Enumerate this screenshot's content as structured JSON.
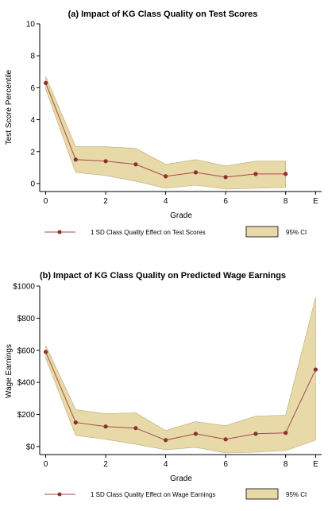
{
  "colors": {
    "ci_fill": "#e8d9a8",
    "ci_stroke": "#b8a877",
    "line": "#a64b4b",
    "marker": "#8b2f2f",
    "axis": "#000000"
  },
  "chart_data": [
    {
      "type": "line",
      "title": "(a) Impact of KG Class Quality on Test Scores",
      "xlabel": "Grade",
      "ylabel": "Test Score Percentile",
      "x_ticks": [
        "0",
        "2",
        "4",
        "6",
        "8",
        "E"
      ],
      "x_tick_values": [
        0,
        2,
        4,
        6,
        8,
        9
      ],
      "xlim": [
        -0.2,
        9.2
      ],
      "ylim": [
        -0.5,
        10
      ],
      "y_ticks": [
        0,
        2,
        4,
        6,
        8,
        10
      ],
      "y_tick_labels": [
        "0",
        "2",
        "4",
        "6",
        "8",
        "10"
      ],
      "x": [
        0,
        1,
        2,
        3,
        4,
        5,
        6,
        7,
        8
      ],
      "series": [
        {
          "name": "1 SD Class Quality Effect on Test Scores",
          "values": [
            6.3,
            1.5,
            1.4,
            1.2,
            0.45,
            0.7,
            0.4,
            0.6,
            0.6
          ],
          "ci_lower": [
            5.9,
            0.7,
            0.5,
            0.15,
            -0.3,
            -0.1,
            -0.35,
            -0.3,
            -0.25
          ],
          "ci_upper": [
            6.7,
            2.3,
            2.3,
            2.2,
            1.2,
            1.5,
            1.1,
            1.4,
            1.4
          ]
        }
      ],
      "legend": {
        "line_label": "1 SD Class Quality Effect on Test Scores",
        "ci_label": "95% CI",
        "placement": "bottom"
      }
    },
    {
      "type": "line",
      "title": "(b) Impact of KG Class Quality on Predicted Wage Earnings",
      "xlabel": "Grade",
      "ylabel": "Wage Earnings",
      "x_ticks": [
        "0",
        "2",
        "4",
        "6",
        "8",
        "E"
      ],
      "x_tick_values": [
        0,
        2,
        4,
        6,
        8,
        9
      ],
      "xlim": [
        -0.2,
        9.2
      ],
      "ylim": [
        -50,
        1000
      ],
      "y_ticks": [
        0,
        200,
        400,
        600,
        800,
        1000
      ],
      "y_tick_labels": [
        "$0",
        "$200",
        "$400",
        "$600",
        "$800",
        "$1000"
      ],
      "x": [
        0,
        1,
        2,
        3,
        4,
        5,
        6,
        7,
        8,
        9
      ],
      "series": [
        {
          "name": "1 SD Class Quality Effect on Wage Earnings",
          "values": [
            590,
            150,
            125,
            115,
            40,
            80,
            45,
            80,
            85,
            480
          ],
          "ci_lower": [
            550,
            70,
            45,
            15,
            -20,
            -5,
            -40,
            -35,
            -25,
            40
          ],
          "ci_upper": [
            630,
            230,
            205,
            210,
            100,
            155,
            130,
            190,
            195,
            930
          ]
        }
      ],
      "legend": {
        "line_label": "1 SD Class Quality Effect on Wage Earnings",
        "ci_label": "95% CI",
        "placement": "bottom"
      }
    }
  ]
}
